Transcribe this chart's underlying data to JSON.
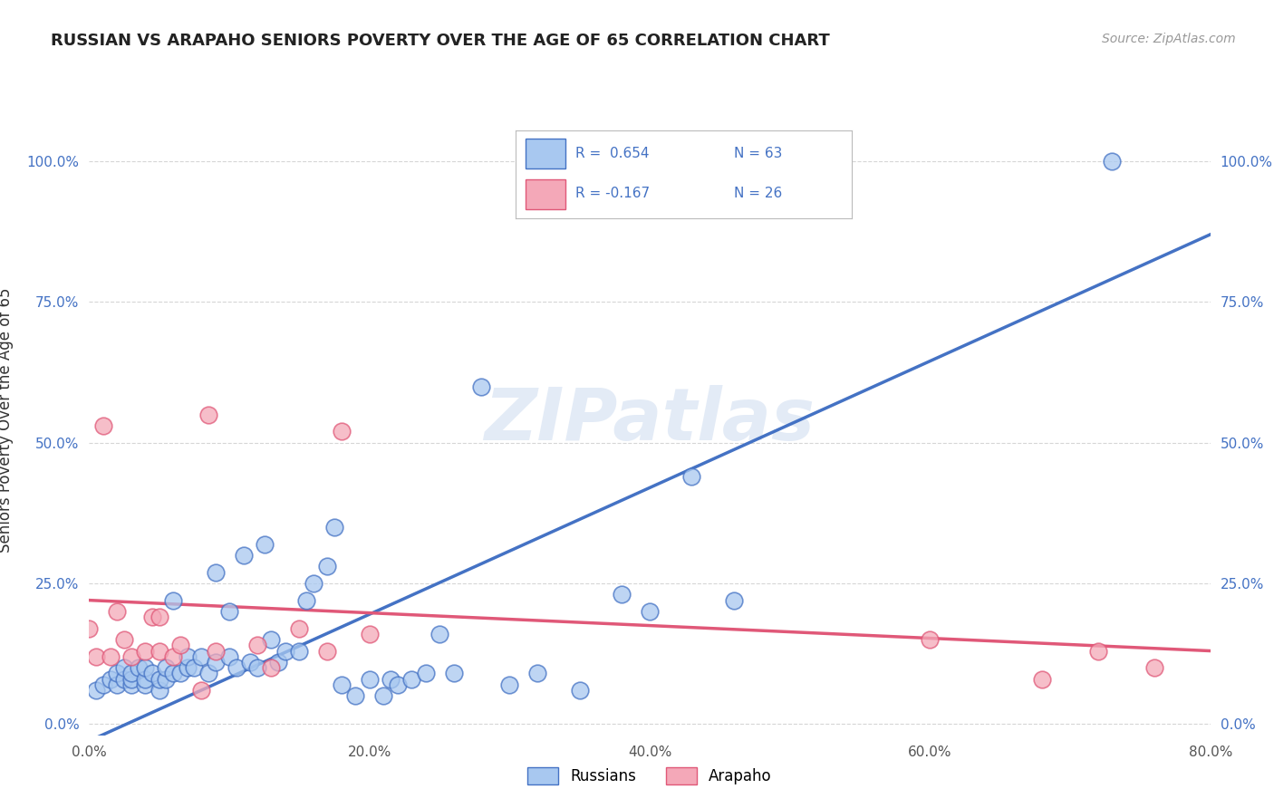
{
  "title": "RUSSIAN VS ARAPAHO SENIORS POVERTY OVER THE AGE OF 65 CORRELATION CHART",
  "source": "Source: ZipAtlas.com",
  "ylabel": "Seniors Poverty Over the Age of 65",
  "xlim": [
    0.0,
    0.8
  ],
  "ylim": [
    -0.02,
    1.1
  ],
  "xticks": [
    0.0,
    0.2,
    0.4,
    0.6,
    0.8
  ],
  "yticks": [
    0.0,
    0.25,
    0.5,
    0.75,
    1.0
  ],
  "xticklabels": [
    "0.0%",
    "20.0%",
    "40.0%",
    "60.0%",
    "80.0%"
  ],
  "yticklabels": [
    "0.0%",
    "25.0%",
    "50.0%",
    "75.0%",
    "100.0%"
  ],
  "russian_R": 0.654,
  "russian_N": 63,
  "arapaho_R": -0.167,
  "arapaho_N": 26,
  "russian_color": "#A8C8F0",
  "arapaho_color": "#F4A8B8",
  "russian_line_color": "#4472C4",
  "arapaho_line_color": "#E05878",
  "tick_color": "#4472C4",
  "watermark": "ZIPatlas",
  "background_color": "#FFFFFF",
  "grid_color": "#CCCCCC",
  "russian_line_y0": -0.03,
  "russian_line_y1": 0.87,
  "arapaho_line_y0": 0.22,
  "arapaho_line_y1": 0.13,
  "russian_x": [
    0.005,
    0.01,
    0.015,
    0.02,
    0.02,
    0.025,
    0.025,
    0.03,
    0.03,
    0.03,
    0.035,
    0.04,
    0.04,
    0.04,
    0.045,
    0.05,
    0.05,
    0.055,
    0.055,
    0.06,
    0.06,
    0.065,
    0.07,
    0.07,
    0.075,
    0.08,
    0.085,
    0.09,
    0.09,
    0.1,
    0.1,
    0.105,
    0.11,
    0.115,
    0.12,
    0.125,
    0.13,
    0.135,
    0.14,
    0.15,
    0.155,
    0.16,
    0.17,
    0.175,
    0.18,
    0.19,
    0.2,
    0.21,
    0.215,
    0.22,
    0.23,
    0.24,
    0.25,
    0.26,
    0.28,
    0.3,
    0.32,
    0.35,
    0.38,
    0.4,
    0.43,
    0.46,
    0.73
  ],
  "russian_y": [
    0.06,
    0.07,
    0.08,
    0.07,
    0.09,
    0.08,
    0.1,
    0.07,
    0.08,
    0.09,
    0.1,
    0.07,
    0.08,
    0.1,
    0.09,
    0.06,
    0.08,
    0.08,
    0.1,
    0.09,
    0.22,
    0.09,
    0.1,
    0.12,
    0.1,
    0.12,
    0.09,
    0.11,
    0.27,
    0.12,
    0.2,
    0.1,
    0.3,
    0.11,
    0.1,
    0.32,
    0.15,
    0.11,
    0.13,
    0.13,
    0.22,
    0.25,
    0.28,
    0.35,
    0.07,
    0.05,
    0.08,
    0.05,
    0.08,
    0.07,
    0.08,
    0.09,
    0.16,
    0.09,
    0.6,
    0.07,
    0.09,
    0.06,
    0.23,
    0.2,
    0.44,
    0.22,
    1.0
  ],
  "arapaho_x": [
    0.0,
    0.005,
    0.01,
    0.015,
    0.02,
    0.025,
    0.03,
    0.04,
    0.045,
    0.05,
    0.05,
    0.06,
    0.065,
    0.08,
    0.085,
    0.09,
    0.12,
    0.13,
    0.15,
    0.17,
    0.18,
    0.2,
    0.6,
    0.68,
    0.72,
    0.76
  ],
  "arapaho_y": [
    0.17,
    0.12,
    0.53,
    0.12,
    0.2,
    0.15,
    0.12,
    0.13,
    0.19,
    0.13,
    0.19,
    0.12,
    0.14,
    0.06,
    0.55,
    0.13,
    0.14,
    0.1,
    0.17,
    0.13,
    0.52,
    0.16,
    0.15,
    0.08,
    0.13,
    0.1
  ]
}
